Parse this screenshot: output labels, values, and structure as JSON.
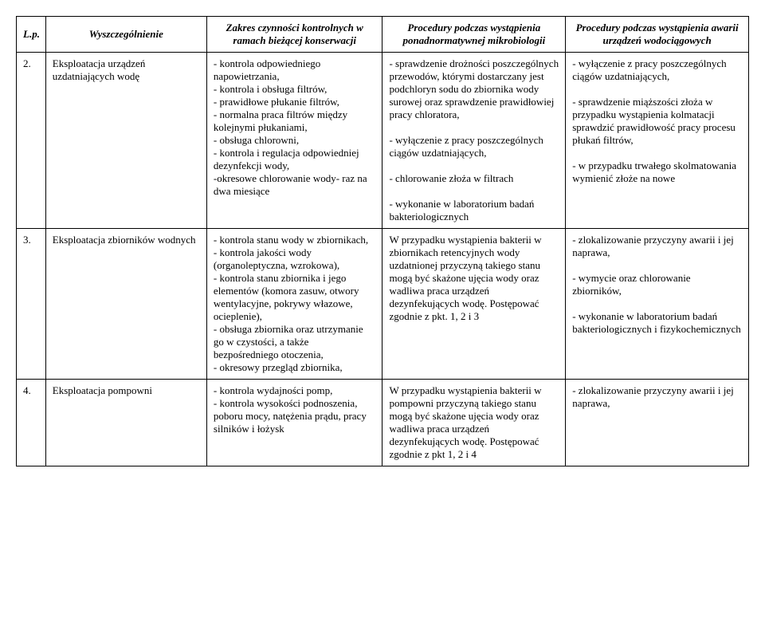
{
  "headers": {
    "lp": "L.p.",
    "wy": "Wyszczególnienie",
    "zc": "Zakres czynności kontrolnych w ramach bieżącej konserwacji",
    "p1": "Procedury podczas wystąpienia ponadnormatywnej mikrobiologii",
    "p2": "Procedury podczas wystąpienia awarii urządzeń wodociągowych"
  },
  "rows": [
    {
      "lp": "2.",
      "wy": "Eksploatacja urządzeń uzdatniających wodę",
      "zc": "- kontrola odpowiedniego napowietrzania,\n- kontrola i obsługa filtrów,\n- prawidłowe płukanie filtrów,\n- normalna praca filtrów między kolejnymi płukaniami,\n- obsługa chlorowni,\n- kontrola i regulacja odpowiedniej dezynfekcji wody,\n-okresowe chlorowanie wody- raz na dwa miesiące",
      "p1": "- sprawdzenie drożności poszczególnych przewodów, którymi dostarczany jest podchloryn sodu do zbiornika wody surowej oraz sprawdzenie prawidłowiej pracy chloratora,\n\n- wyłączenie z pracy poszczególnych ciągów uzdatniających,\n\n- chlorowanie złoża w filtrach\n\n- wykonanie w laboratorium badań bakteriologicznych",
      "p2": "- wyłączenie z pracy poszczególnych ciągów uzdatniających,\n\n- sprawdzenie miąższości złoża w przypadku wystąpienia kolmatacji sprawdzić prawidłowość pracy procesu płukań filtrów,\n\n- w przypadku trwałego skolmatowania wymienić złoże na nowe"
    },
    {
      "lp": "3.",
      "wy": "Eksploatacja zbiorników wodnych",
      "zc": "- kontrola stanu wody w zbiornikach,\n- kontrola jakości wody (organoleptyczna, wzrokowa),\n- kontrola stanu zbiornika i jego elementów (komora zasuw, otwory wentylacyjne, pokrywy włazowe, ocieplenie),\n- obsługa zbiornika oraz utrzymanie go w czystości, a także bezpośredniego otoczenia,\n- okresowy przegląd zbiornika,",
      "p1": "W przypadku wystąpienia bakterii w zbiornikach retencyjnych wody uzdatnionej przyczyną takiego stanu mogą być skażone ujęcia wody oraz wadliwa praca urządzeń dezynfekujących wodę. Postępować zgodnie z pkt. 1, 2 i 3",
      "p2": "- zlokalizowanie przyczyny awarii i jej naprawa,\n\n- wymycie oraz chlorowanie zbiorników,\n\n- wykonanie w laboratorium badań bakteriologicznych i fizykochemicznych"
    },
    {
      "lp": "4.",
      "wy": "Eksploatacja pompowni",
      "zc": "- kontrola wydajności pomp,\n- kontrola wysokości podnoszenia, poboru mocy, natężenia prądu, pracy silników i łożysk",
      "p1": "W przypadku wystąpienia bakterii w pompowni przyczyną takiego stanu mogą być skażone ujęcia wody oraz wadliwa praca urządzeń dezynfekujących wodę. Postępować zgodnie z pkt 1, 2 i 4",
      "p2": "- zlokalizowanie przyczyny awarii i jej naprawa,"
    }
  ]
}
